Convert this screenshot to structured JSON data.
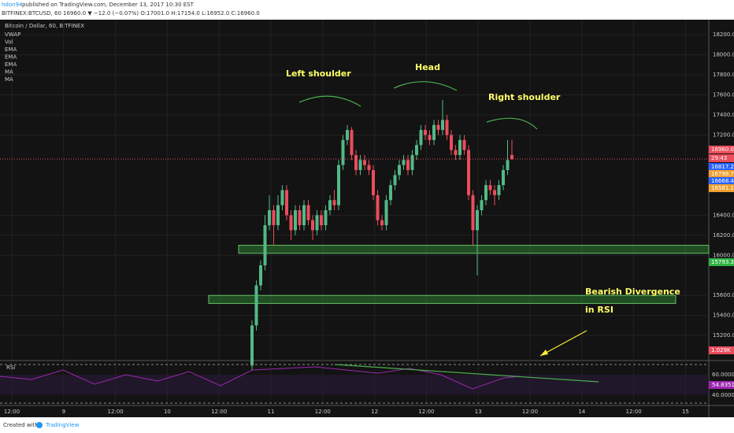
{
  "chart_data": {
    "type": "candlestick",
    "header": {
      "publisher": "hdon94",
      "published": "published on TradingView.com, December 13, 2017 10:30 EST",
      "symbol_line": "BITFINEX:BTCUSD, 60  16960.0 ▼ −12.0 (−0.07%) O:17001.0 H:17154.0 L:16952.0 C:16960.0"
    },
    "title": "Bitcoin / Dollar, 60, BITFINEX",
    "indicators": [
      "VWAP",
      "Vol",
      "EMA",
      "EMA",
      "EMA",
      "MA",
      "MA"
    ],
    "annotations": [
      "Left shoulder",
      "Head",
      "Right shoulder",
      "Bearish Divergence",
      "in RSI"
    ],
    "up_color": "#53b987",
    "down_color": "#eb4d5c",
    "ylim": [
      14950,
      18350
    ],
    "yticks": [
      {
        "value": 18200,
        "label": "18200.0"
      },
      {
        "value": 18000,
        "label": "18000.0"
      },
      {
        "value": 17800,
        "label": "17800.0"
      },
      {
        "value": 17600,
        "label": "17600.0"
      },
      {
        "value": 17400,
        "label": "17400.0"
      },
      {
        "value": 17200,
        "label": "17200.0"
      },
      {
        "value": 16400,
        "label": "16400.0"
      },
      {
        "value": 16200,
        "label": "16200.0"
      },
      {
        "value": 16000,
        "label": "16000.0"
      },
      {
        "value": 15600,
        "label": "15600.0"
      },
      {
        "value": 15400,
        "label": "15400.0"
      },
      {
        "value": 15200,
        "label": "15200.0"
      }
    ],
    "badges": [
      {
        "label": "16960.0",
        "color": "#eb4d5c"
      },
      {
        "label": "29:43",
        "color": "#eb4d5c"
      },
      {
        "label": "16817.2",
        "color": "#2962ff"
      },
      {
        "label": "16798.7",
        "color": "#f0a030"
      },
      {
        "label": "16668.4",
        "color": "#2962ff"
      },
      {
        "label": "16581.1",
        "color": "#f0a030"
      },
      {
        "label": "15793.3",
        "color": "#2fb344"
      },
      {
        "label": "1.029K",
        "color": "#eb4d5c"
      }
    ],
    "zones": [
      [
        16020,
        16100
      ],
      [
        15520,
        15600
      ]
    ],
    "rsi": {
      "title": "RSI",
      "ticks": [
        "60.0000",
        "54.8351",
        "40.0000"
      ]
    },
    "x_labels": [
      "12:00",
      "9",
      "12:00",
      "10",
      "12:00",
      "11",
      "12:00",
      "12",
      "12:00",
      "13",
      "12:00",
      "14",
      "12:00",
      "15"
    ],
    "footer": {
      "created": "Created with",
      "brand": "TradingView"
    },
    "candles": [
      [
        14900,
        15350,
        14850,
        15300
      ],
      [
        15300,
        15750,
        15250,
        15700
      ],
      [
        15700,
        15950,
        15650,
        15900
      ],
      [
        15900,
        16400,
        15850,
        16300
      ],
      [
        16300,
        16600,
        16250,
        16450
      ],
      [
        16450,
        16500,
        16100,
        16300
      ],
      [
        16300,
        16600,
        16250,
        16500
      ],
      [
        16500,
        16700,
        16450,
        16650
      ],
      [
        16650,
        16700,
        16350,
        16400
      ],
      [
        16400,
        16450,
        16150,
        16250
      ],
      [
        16250,
        16500,
        16200,
        16450
      ],
      [
        16450,
        16500,
        16250,
        16300
      ],
      [
        16300,
        16550,
        16250,
        16500
      ],
      [
        16500,
        16550,
        16300,
        16350
      ],
      [
        16350,
        16400,
        16150,
        16250
      ],
      [
        16250,
        16450,
        16200,
        16400
      ],
      [
        16400,
        16450,
        16250,
        16300
      ],
      [
        16300,
        16500,
        16250,
        16450
      ],
      [
        16450,
        16600,
        16400,
        16550
      ],
      [
        16550,
        16650,
        16450,
        16500
      ],
      [
        16500,
        16950,
        16450,
        16900
      ],
      [
        16900,
        17200,
        16850,
        17150
      ],
      [
        17150,
        17300,
        17100,
        17250
      ],
      [
        17250,
        17280,
        16950,
        17000
      ],
      [
        17000,
        17050,
        16800,
        16850
      ],
      [
        16850,
        17000,
        16800,
        16950
      ],
      [
        16950,
        17000,
        16850,
        16900
      ],
      [
        16900,
        16950,
        16800,
        16850
      ],
      [
        16850,
        16900,
        16550,
        16600
      ],
      [
        16600,
        16650,
        16300,
        16350
      ],
      [
        16350,
        16400,
        16250,
        16300
      ],
      [
        16300,
        16600,
        16250,
        16550
      ],
      [
        16550,
        16750,
        16500,
        16700
      ],
      [
        16700,
        16850,
        16650,
        16800
      ],
      [
        16800,
        16950,
        16750,
        16900
      ],
      [
        16900,
        17000,
        16850,
        16950
      ],
      [
        16950,
        17000,
        16800,
        16850
      ],
      [
        16850,
        17050,
        16800,
        17000
      ],
      [
        17000,
        17150,
        16950,
        17100
      ],
      [
        17100,
        17300,
        17050,
        17250
      ],
      [
        17250,
        17300,
        17150,
        17200
      ],
      [
        17200,
        17250,
        17100,
        17150
      ],
      [
        17150,
        17350,
        17100,
        17300
      ],
      [
        17300,
        17350,
        17200,
        17250
      ],
      [
        17250,
        17550,
        17200,
        17350
      ],
      [
        17350,
        17400,
        17150,
        17200
      ],
      [
        17200,
        17250,
        17000,
        17050
      ],
      [
        17050,
        17100,
        16950,
        17000
      ],
      [
        17000,
        17200,
        16950,
        17150
      ],
      [
        17150,
        17200,
        17000,
        17050
      ],
      [
        17050,
        17100,
        16550,
        16600
      ],
      [
        16600,
        16650,
        16100,
        16250
      ],
      [
        16250,
        16500,
        15800,
        16450
      ],
      [
        16450,
        16600,
        16400,
        16550
      ],
      [
        16550,
        16750,
        16500,
        16700
      ],
      [
        16700,
        16750,
        16600,
        16650
      ],
      [
        16650,
        16700,
        16500,
        16600
      ],
      [
        16600,
        16750,
        16550,
        16700
      ],
      [
        16700,
        16900,
        16650,
        16850
      ],
      [
        16850,
        17150,
        16800,
        16950
      ],
      [
        17001,
        17154,
        16952,
        16960
      ]
    ]
  }
}
